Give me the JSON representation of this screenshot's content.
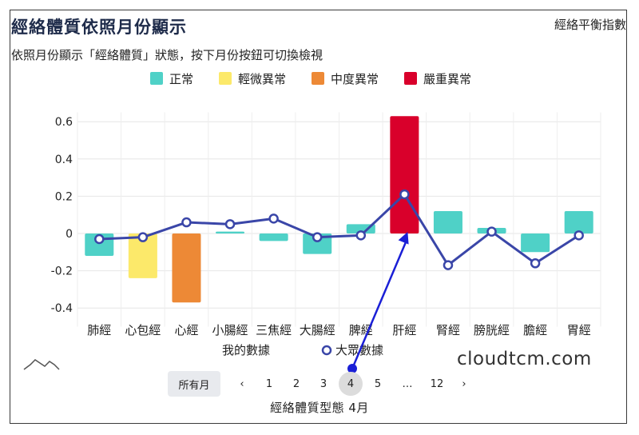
{
  "header": {
    "title": "經絡體質依照月份顯示",
    "link": "經絡平衡指數",
    "subtitle": "依照月份顯示「經絡體質」狀態，按下月份按鈕可切換檢視"
  },
  "legend": [
    {
      "label": "正常",
      "color": "#4fd1c7"
    },
    {
      "label": "輕微異常",
      "color": "#fce96a"
    },
    {
      "label": "中度異常",
      "color": "#ed8936"
    },
    {
      "label": "嚴重異常",
      "color": "#d9002b"
    }
  ],
  "chart_data": {
    "type": "bar",
    "categories": [
      "肺經",
      "心包經",
      "心經",
      "小腸經",
      "三焦經",
      "大腸經",
      "脾經",
      "肝經",
      "腎經",
      "膀胱經",
      "膽經",
      "胃經"
    ],
    "series": [
      {
        "name": "我的數據",
        "type": "bar",
        "values": [
          -0.12,
          -0.24,
          -0.37,
          0.01,
          -0.04,
          -0.11,
          0.05,
          0.63,
          0.12,
          0.03,
          -0.1,
          0.12
        ],
        "colors": [
          "#4fd1c7",
          "#fce96a",
          "#ed8936",
          "#4fd1c7",
          "#4fd1c7",
          "#4fd1c7",
          "#4fd1c7",
          "#d9002b",
          "#4fd1c7",
          "#4fd1c7",
          "#4fd1c7",
          "#4fd1c7"
        ]
      },
      {
        "name": "大眾數據",
        "type": "line",
        "color": "#3a46a8",
        "values": [
          -0.03,
          -0.02,
          0.06,
          0.05,
          0.08,
          -0.02,
          -0.01,
          0.21,
          -0.17,
          0.01,
          -0.16,
          -0.01
        ]
      }
    ],
    "yticks": [
      "0.6",
      "0.4",
      "0.2",
      "0",
      "-0.2",
      "-0.4"
    ],
    "ylim": [
      -0.44,
      0.65
    ],
    "grid": true,
    "annotation_arrow": {
      "from": "月份 4",
      "to": "肝經",
      "color": "#1a1fd6"
    }
  },
  "watermark": "cloudtcm.com",
  "pager": {
    "all_label": "所有月",
    "prev": "‹",
    "next": "›",
    "pages": [
      "1",
      "2",
      "3",
      "4",
      "5",
      "…",
      "12"
    ],
    "active_page": "4",
    "caption": "經絡體質型態 4月"
  }
}
